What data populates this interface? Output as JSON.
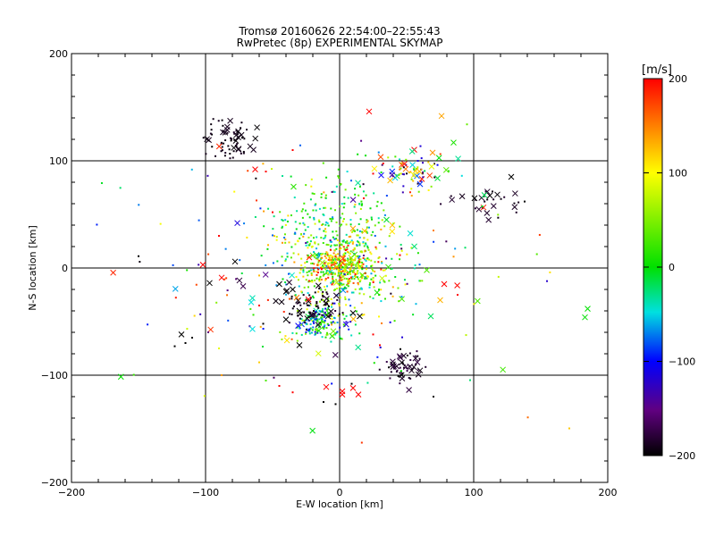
{
  "chart_data": {
    "type": "scatter",
    "title": "Tromsø 20160626 22:54:00–22:55:43",
    "subtitle": "RwPretec (8p) EXPERIMENTAL SKYMAP",
    "xlabel": "E-W location [km]",
    "ylabel": "N-S location [km]",
    "xlim": [
      -200,
      200
    ],
    "ylim": [
      -200,
      200
    ],
    "x_ticks": [
      -200,
      -100,
      0,
      100,
      200
    ],
    "y_ticks": [
      -200,
      -100,
      0,
      100,
      200
    ],
    "x_tick_labels": [
      "−200",
      "−100",
      "0",
      "100",
      "200"
    ],
    "y_tick_labels": [
      "−200",
      "−100",
      "0",
      "100",
      "200"
    ],
    "gridlines": [
      -100,
      0,
      100
    ],
    "colorbar": {
      "label": "[m/s]",
      "range": [
        -200,
        200
      ],
      "ticks": [
        200,
        100,
        0,
        -100,
        -200
      ],
      "tick_labels": [
        "200",
        "100",
        "0",
        "−100",
        "−200"
      ]
    },
    "clusters": [
      {
        "cx": -82,
        "cy": 118,
        "sx": 10,
        "sy": 9,
        "n": 70,
        "vmin": -200,
        "vmax": -185,
        "x_frac": 0.25
      },
      {
        "cx": 52,
        "cy": 93,
        "sx": 12,
        "sy": 9,
        "n": 75,
        "vmin": -200,
        "vmax": 200,
        "x_frac": 0.3
      },
      {
        "cx": 110,
        "cy": 62,
        "sx": 15,
        "sy": 7,
        "n": 30,
        "vmin": -200,
        "vmax": -180,
        "x_frac": 0.4
      },
      {
        "cx": 0,
        "cy": 8,
        "sx": 22,
        "sy": 28,
        "n": 500,
        "vmin": -80,
        "vmax": 140,
        "x_frac": 0.04
      },
      {
        "cx": 0,
        "cy": 2,
        "sx": 12,
        "sy": 9,
        "n": 260,
        "vmin": 0,
        "vmax": 200,
        "x_frac": 0.04
      },
      {
        "cx": -5,
        "cy": 60,
        "sx": 18,
        "sy": 14,
        "n": 70,
        "vmin": -40,
        "vmax": 40,
        "x_frac": 0.03
      },
      {
        "cx": -15,
        "cy": -52,
        "sx": 10,
        "sy": 8,
        "n": 130,
        "vmin": -120,
        "vmax": 60,
        "x_frac": 0.08
      },
      {
        "cx": -20,
        "cy": -35,
        "sx": 12,
        "sy": 9,
        "n": 70,
        "vmin": -200,
        "vmax": -180,
        "x_frac": 0.2
      },
      {
        "cx": 48,
        "cy": -92,
        "sx": 7,
        "sy": 8,
        "n": 55,
        "vmin": -200,
        "vmax": -170,
        "x_frac": 0.3
      },
      {
        "cx": 0,
        "cy": 0,
        "sx": 70,
        "sy": 60,
        "n": 170,
        "vmin": -200,
        "vmax": 200,
        "x_frac": 0.2
      }
    ],
    "extra_markers": [
      {
        "x": 22,
        "y": 146,
        "v": 200,
        "m": "x"
      },
      {
        "x": 85,
        "y": 117,
        "v": 10,
        "m": "x"
      },
      {
        "x": 95,
        "y": 134,
        "v": 40,
        "m": "."
      },
      {
        "x": -50,
        "y": 52,
        "v": 200,
        "m": "."
      },
      {
        "x": -62,
        "y": 63,
        "v": 180,
        "m": "."
      },
      {
        "x": -150,
        "y": 11,
        "v": -200,
        "m": "."
      },
      {
        "x": -102,
        "y": 3,
        "v": 200,
        "m": "x"
      },
      {
        "x": -97,
        "y": -14,
        "v": -200,
        "m": "x"
      },
      {
        "x": -88,
        "y": -9,
        "v": 200,
        "m": "x"
      },
      {
        "x": -78,
        "y": 6,
        "v": -200,
        "m": "x"
      },
      {
        "x": -72,
        "y": -17,
        "v": -170,
        "m": "x"
      },
      {
        "x": -65,
        "y": -28,
        "v": -40,
        "m": "x"
      },
      {
        "x": -66,
        "y": -32,
        "v": -50,
        "m": "x"
      },
      {
        "x": -65,
        "y": -57,
        "v": -50,
        "m": "x"
      },
      {
        "x": -60,
        "y": -35,
        "v": 200,
        "m": "."
      },
      {
        "x": -57,
        "y": -52,
        "v": -200,
        "m": "."
      },
      {
        "x": -118,
        "y": -62,
        "v": -200,
        "m": "x"
      },
      {
        "x": -115,
        "y": -70,
        "v": -200,
        "m": "."
      },
      {
        "x": -123,
        "y": -73,
        "v": -200,
        "m": "."
      },
      {
        "x": -110,
        "y": -65,
        "v": -200,
        "m": "."
      },
      {
        "x": -98,
        "y": -60,
        "v": -150,
        "m": "."
      },
      {
        "x": -90,
        "y": -75,
        "v": 90,
        "m": "."
      },
      {
        "x": -88,
        "y": -100,
        "v": 140,
        "m": "."
      },
      {
        "x": -60,
        "y": -88,
        "v": 120,
        "m": "."
      },
      {
        "x": -55,
        "y": -105,
        "v": 30,
        "m": "."
      },
      {
        "x": -45,
        "y": -110,
        "v": 200,
        "m": "."
      },
      {
        "x": -35,
        "y": -116,
        "v": 200,
        "m": "."
      },
      {
        "x": -30,
        "y": -72,
        "v": -200,
        "m": "x"
      },
      {
        "x": -10,
        "y": -111,
        "v": 200,
        "m": "x"
      },
      {
        "x": 2,
        "y": -115,
        "v": 200,
        "m": "x"
      },
      {
        "x": 2,
        "y": -118,
        "v": 200,
        "m": "x"
      },
      {
        "x": 10,
        "y": -112,
        "v": 200,
        "m": "x"
      },
      {
        "x": 14,
        "y": -118,
        "v": 200,
        "m": "x"
      },
      {
        "x": 9,
        "y": -108,
        "v": -200,
        "m": "."
      },
      {
        "x": -3,
        "y": -127,
        "v": -200,
        "m": "."
      },
      {
        "x": -12,
        "y": -125,
        "v": -200,
        "m": "."
      },
      {
        "x": 70,
        "y": -120,
        "v": -200,
        "m": "."
      },
      {
        "x": 30,
        "y": -72,
        "v": 200,
        "m": "."
      },
      {
        "x": 68,
        "y": -45,
        "v": -20,
        "m": "x"
      },
      {
        "x": 75,
        "y": -30,
        "v": 130,
        "m": "x"
      },
      {
        "x": 78,
        "y": -15,
        "v": 200,
        "m": "x"
      },
      {
        "x": 88,
        "y": -25,
        "v": 200,
        "m": "."
      },
      {
        "x": 65,
        "y": -2,
        "v": 30,
        "m": "x"
      },
      {
        "x": 60,
        "y": -12,
        "v": 40,
        "m": "."
      },
      {
        "x": 185,
        "y": -38,
        "v": 0,
        "m": "x"
      },
      {
        "x": 183,
        "y": -46,
        "v": 0,
        "m": "x"
      },
      {
        "x": 128,
        "y": 85,
        "v": -200,
        "m": "x"
      },
      {
        "x": 138,
        "y": 62,
        "v": -200,
        "m": "."
      },
      {
        "x": 108,
        "y": 68,
        "v": -20,
        "m": "x"
      },
      {
        "x": -63,
        "y": 92,
        "v": 200,
        "m": "x"
      },
      {
        "x": -55,
        "y": 90,
        "v": 200,
        "m": "."
      },
      {
        "x": -35,
        "y": 110,
        "v": 200,
        "m": "."
      },
      {
        "x": 35,
        "y": 45,
        "v": -10,
        "m": "x"
      },
      {
        "x": 18,
        "y": 65,
        "v": 200,
        "m": "."
      },
      {
        "x": 70,
        "y": 35,
        "v": 150,
        "m": "."
      },
      {
        "x": 25,
        "y": 88,
        "v": 200,
        "m": "."
      },
      {
        "x": 45,
        "y": 12,
        "v": 200,
        "m": "."
      },
      {
        "x": -90,
        "y": 30,
        "v": 200,
        "m": "."
      },
      {
        "x": -45,
        "y": -15,
        "v": -200,
        "m": "x"
      },
      {
        "x": -40,
        "y": -22,
        "v": -200,
        "m": "x"
      },
      {
        "x": -35,
        "y": -20,
        "v": -200,
        "m": "x"
      },
      {
        "x": -30,
        "y": -40,
        "v": -200,
        "m": "x"
      },
      {
        "x": -40,
        "y": -48,
        "v": -200,
        "m": "x"
      },
      {
        "x": 10,
        "y": -42,
        "v": -200,
        "m": "x"
      },
      {
        "x": 15,
        "y": -45,
        "v": -200,
        "m": "x"
      },
      {
        "x": 25,
        "y": -62,
        "v": 200,
        "m": "."
      }
    ]
  }
}
